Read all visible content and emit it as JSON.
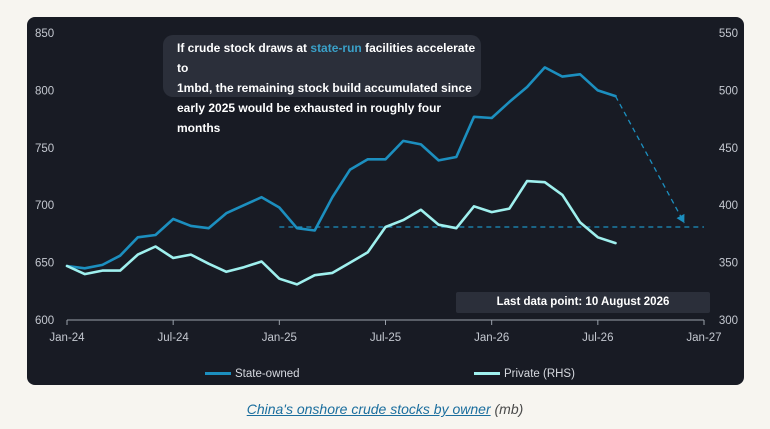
{
  "chart_data": {
    "type": "line",
    "title": "",
    "x_ticks": [
      "Jan-24",
      "Jul-24",
      "Jan-25",
      "Jul-25",
      "Jan-26",
      "Jul-26",
      "Jan-27"
    ],
    "y_left": {
      "ticks": [
        "850",
        "800",
        "750",
        "700",
        "650",
        "600"
      ],
      "ylim": [
        600,
        850
      ]
    },
    "y_right": {
      "ticks": [
        "550",
        "500",
        "450",
        "400",
        "350",
        "300"
      ],
      "ylim": [
        300,
        550
      ]
    },
    "series": [
      {
        "name": "State-owned",
        "axis": "left",
        "color": "#1c8fbf",
        "x": [
          "2024-01",
          "2024-02",
          "2024-03",
          "2024-04",
          "2024-05",
          "2024-06",
          "2024-07",
          "2024-08",
          "2024-09",
          "2024-10",
          "2024-11",
          "2024-12",
          "2025-01",
          "2025-02",
          "2025-03",
          "2025-04",
          "2025-05",
          "2025-06",
          "2025-07",
          "2025-08",
          "2025-09",
          "2025-10",
          "2025-11",
          "2025-12",
          "2026-01",
          "2026-02",
          "2026-03",
          "2026-04",
          "2026-05",
          "2026-06",
          "2026-07",
          "2026-08"
        ],
        "values": [
          647,
          645,
          648,
          656,
          672,
          674,
          688,
          682,
          680,
          693,
          700,
          707,
          698,
          680,
          678,
          707,
          731,
          740,
          740,
          756,
          753,
          739,
          742,
          777,
          776,
          790,
          803,
          820,
          812,
          814,
          800,
          795
        ]
      },
      {
        "name": "Private (RHS)",
        "axis": "right",
        "color": "#9ff0ee",
        "x": [
          "2024-01",
          "2024-02",
          "2024-03",
          "2024-04",
          "2024-05",
          "2024-06",
          "2024-07",
          "2024-08",
          "2024-09",
          "2024-10",
          "2024-11",
          "2024-12",
          "2025-01",
          "2025-02",
          "2025-03",
          "2025-04",
          "2025-05",
          "2025-06",
          "2025-07",
          "2025-08",
          "2025-09",
          "2025-10",
          "2025-11",
          "2025-12",
          "2026-01",
          "2026-02",
          "2026-03",
          "2026-04",
          "2026-05",
          "2026-06",
          "2026-07",
          "2026-08"
        ],
        "values": [
          347,
          340,
          343,
          343,
          357,
          364,
          354,
          357,
          349,
          342,
          346,
          351,
          336,
          331,
          339,
          341,
          350,
          359,
          381,
          387,
          396,
          383,
          380,
          399,
          394,
          397,
          421,
          420,
          409,
          385,
          372,
          367
        ]
      }
    ],
    "projection": {
      "from": {
        "x": "2026-08",
        "value": 795
      },
      "to": {
        "x": "2026-12",
        "value": 681
      },
      "level": 681,
      "level_from": "2025-01"
    },
    "annotation": {
      "line1_pre": "If crude stock draws at ",
      "line1_highlight": "state-run",
      "line1_post": " facilities accelerate to",
      "line2": "1mbd, the remaining stock build accumulated since",
      "line3": "early 2025 would be exhausted in roughly four months",
      "highlight_color": "#3aa0c8"
    },
    "last_data_point": "Last data point: 10 August 2026",
    "grid": false,
    "legend_placement": "bottom"
  },
  "caption": {
    "link_text": "China's onshore crude stocks by owner",
    "unit": "(mb)"
  },
  "colors": {
    "panel_bg": "#181b24",
    "page_bg": "#f7f5f0",
    "state_owned": "#1c8fbf",
    "private": "#9ff0ee"
  }
}
